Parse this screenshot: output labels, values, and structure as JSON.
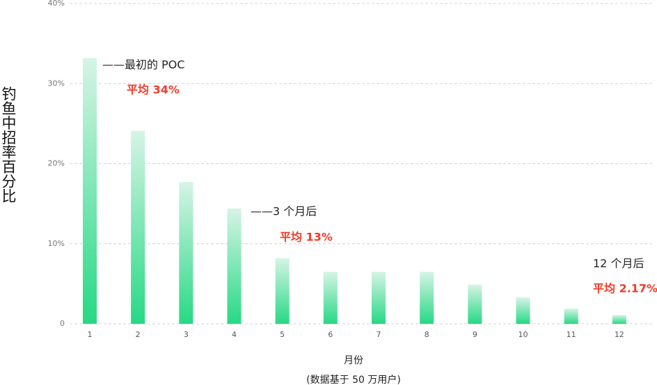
{
  "chart_data": {
    "type": "bar",
    "y_label": "钓鱼中招率百分比",
    "x_label": "月份",
    "subtitle": "(数据基于 50 万用户)",
    "categories": [
      "1",
      "2",
      "3",
      "4",
      "5",
      "6",
      "7",
      "8",
      "9",
      "10",
      "11",
      "12"
    ],
    "values": [
      33.2,
      24.1,
      17.7,
      14.4,
      8.2,
      6.5,
      6.5,
      6.5,
      4.9,
      3.3,
      1.9,
      1.1
    ],
    "color_top": "#d6f4e6",
    "color_bottom": "#26d983",
    "ylim": [
      0,
      40
    ],
    "yticks": [
      0,
      {
        "value": 10,
        "label": "10%"
      },
      {
        "value": 20,
        "label": "20%"
      },
      {
        "value": 30,
        "label": "30%"
      },
      {
        "value": 40,
        "label": "40%"
      }
    ],
    "grid": true,
    "annotations": [
      {
        "text": "——最初的 POC",
        "color": "#222222"
      },
      {
        "text": "平均 34%",
        "color": "#f03c2a"
      },
      {
        "text": "——3 个月后",
        "color": "#222222"
      },
      {
        "text": "平均 13%",
        "color": "#f03c2a"
      },
      {
        "text": "12 个月后",
        "color": "#222222"
      },
      {
        "text": "平均 2.17%",
        "color": "#f03c2a"
      }
    ]
  }
}
